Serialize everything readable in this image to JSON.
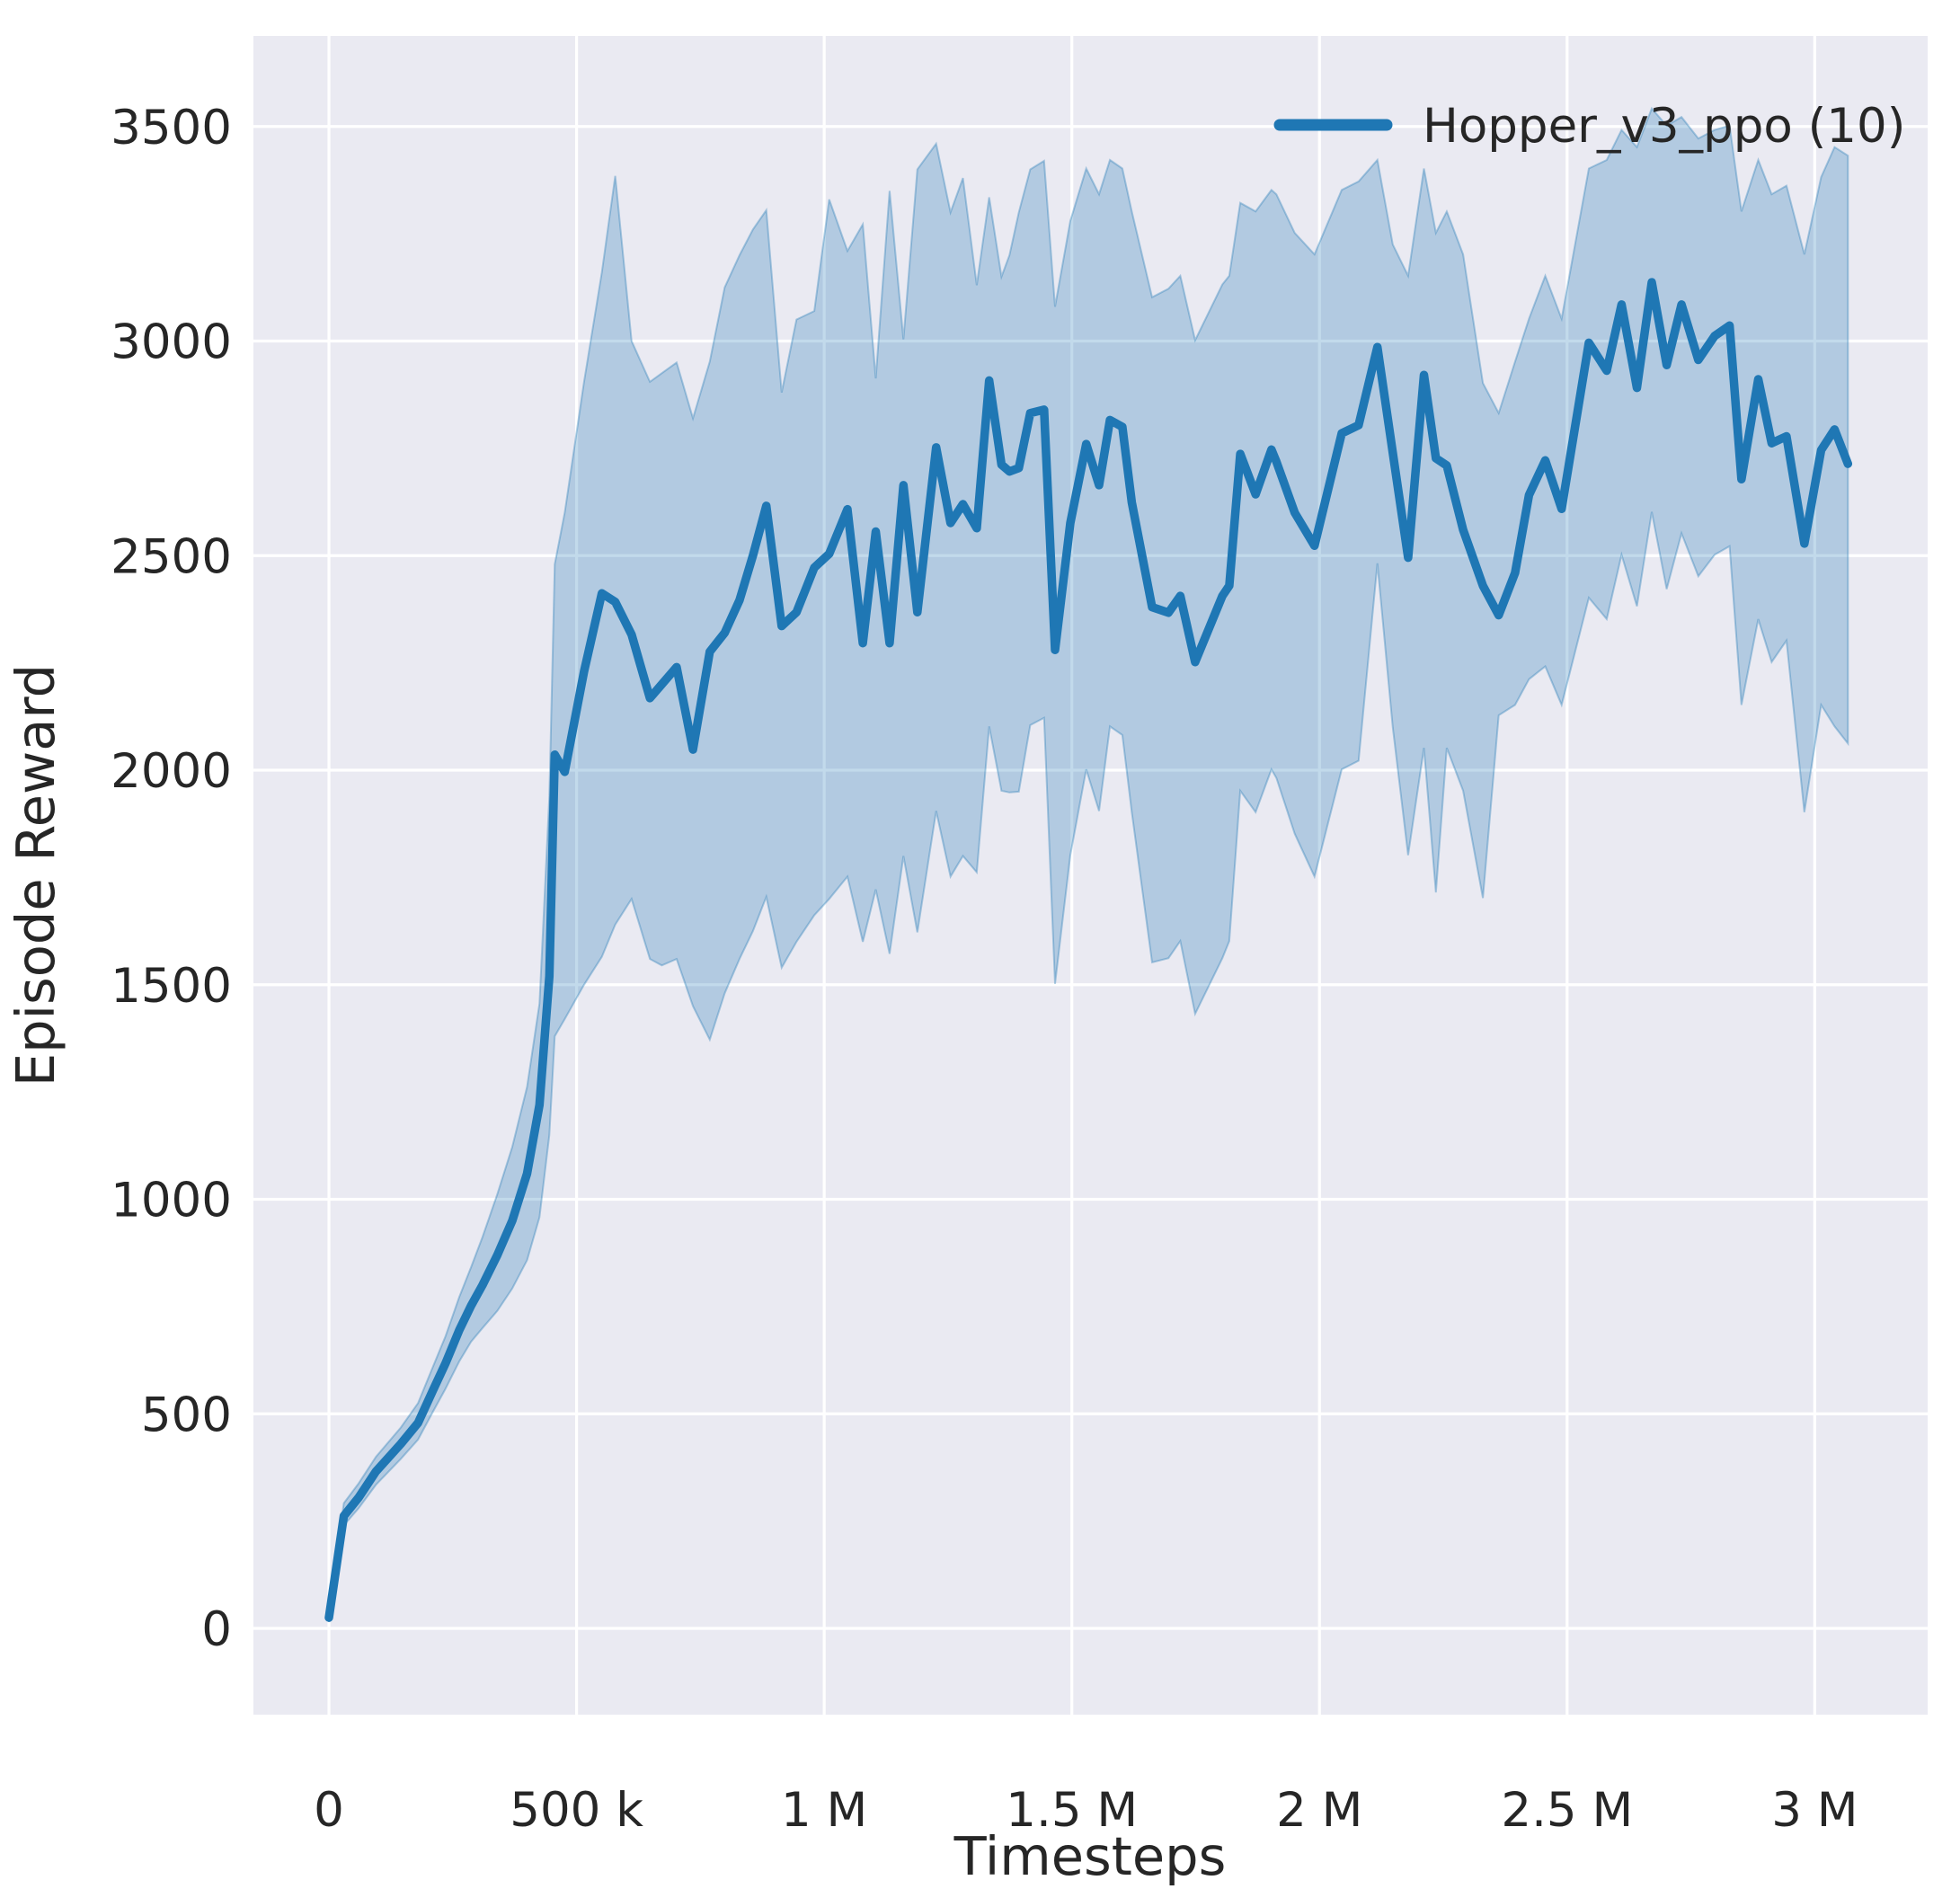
{
  "chart_data": {
    "type": "line",
    "title": "",
    "xlabel": "Timesteps",
    "ylabel": "Episode Reward",
    "legend": [
      {
        "label": "Hopper_v3_ppo (10)",
        "color": "#1f77b4"
      }
    ],
    "legend_position": "upper right",
    "grid": true,
    "colors": {
      "line": "#1f77b4",
      "band_fill": "rgba(31,119,180,0.27)",
      "band_edge": "rgba(31,119,180,0.35)",
      "plot_background": "#eaeaf2",
      "gridline": "#ffffff",
      "text": "#262626"
    },
    "axes": {
      "xlim": [
        -152500,
        3228000
      ],
      "ylim": [
        -201,
        3711
      ],
      "xticks": {
        "values": [
          0,
          500000,
          1000000,
          1500000,
          2000000,
          2500000,
          3000000
        ],
        "labels": [
          "0",
          "500 k",
          "1 M",
          "1.5 M",
          "2 M",
          "2.5 M",
          "3 M"
        ]
      },
      "yticks": {
        "values": [
          0,
          500,
          1000,
          1500,
          2000,
          2500,
          3000,
          3500
        ],
        "labels": [
          "0",
          "500",
          "1000",
          "1500",
          "2000",
          "2500",
          "3000",
          "3500"
        ]
      }
    },
    "series": [
      {
        "name": "Hopper_v3_ppo (10)",
        "x": [
          0,
          30000,
          60000,
          95000,
          145000,
          180000,
          210000,
          235000,
          263000,
          287000,
          310000,
          340000,
          370000,
          400000,
          425000,
          445000,
          456000,
          476000,
          515000,
          551000,
          578000,
          611000,
          648000,
          672000,
          702000,
          735000,
          769000,
          799000,
          829000,
          856000,
          883000,
          914000,
          944000,
          980000,
          1010000,
          1047000,
          1078000,
          1104000,
          1132000,
          1160000,
          1188000,
          1226000,
          1255000,
          1280000,
          1308000,
          1333000,
          1358000,
          1374000,
          1393000,
          1416000,
          1444000,
          1466000,
          1497000,
          1529000,
          1555000,
          1577000,
          1602000,
          1621000,
          1662000,
          1695000,
          1719000,
          1749000,
          1804000,
          1818000,
          1840000,
          1871000,
          1903000,
          1913000,
          1950000,
          1990000,
          2045000,
          2079000,
          2117000,
          2148000,
          2179000,
          2211000,
          2235000,
          2257000,
          2290000,
          2330000,
          2362000,
          2395000,
          2423000,
          2456000,
          2489000,
          2544000,
          2580000,
          2610000,
          2641000,
          2671000,
          2701000,
          2731000,
          2765000,
          2798000,
          2828000,
          2852000,
          2886000,
          2913000,
          2943000,
          2979000,
          3013000,
          3040000,
          3067000
        ],
        "mean": [
          25,
          262,
          305,
          366,
          430,
          479,
          555,
          617,
          695,
          752,
          800,
          870,
          950,
          1060,
          1220,
          1520,
          2036,
          1996,
          2230,
          2412,
          2392,
          2316,
          2168,
          2200,
          2240,
          2048,
          2276,
          2320,
          2396,
          2500,
          2616,
          2336,
          2368,
          2472,
          2504,
          2608,
          2296,
          2556,
          2296,
          2664,
          2368,
          2752,
          2576,
          2620,
          2564,
          2908,
          2712,
          2696,
          2704,
          2832,
          2840,
          2280,
          2576,
          2760,
          2664,
          2816,
          2800,
          2624,
          2380,
          2367,
          2406,
          2252,
          2406,
          2430,
          2737,
          2643,
          2747,
          2719,
          2600,
          2523,
          2785,
          2804,
          2986,
          2740,
          2495,
          2921,
          2727,
          2710,
          2560,
          2430,
          2361,
          2460,
          2641,
          2722,
          2609,
          2996,
          2931,
          3085,
          2891,
          3137,
          2944,
          3085,
          2956,
          3012,
          3036,
          2678,
          2911,
          2762,
          2778,
          2528,
          2746,
          2794,
          2714
        ],
        "lower": [
          15,
          240,
          280,
          335,
          395,
          440,
          505,
          558,
          622,
          668,
          700,
          740,
          792,
          858,
          958,
          1150,
          1380,
          1420,
          1500,
          1565,
          1640,
          1700,
          1560,
          1545,
          1560,
          1450,
          1372,
          1480,
          1560,
          1625,
          1705,
          1540,
          1600,
          1662,
          1700,
          1752,
          1600,
          1722,
          1572,
          1800,
          1622,
          1905,
          1752,
          1800,
          1762,
          2102,
          1952,
          1948,
          1950,
          2105,
          2122,
          1502,
          1802,
          2002,
          1905,
          2102,
          2082,
          1902,
          1552,
          1562,
          1602,
          1432,
          1562,
          1602,
          1952,
          1902,
          2002,
          1982,
          1852,
          1752,
          2002,
          2022,
          2482,
          2100,
          1802,
          2052,
          1715,
          2052,
          1952,
          1702,
          2128,
          2152,
          2212,
          2242,
          2152,
          2402,
          2352,
          2502,
          2382,
          2602,
          2422,
          2552,
          2452,
          2502,
          2522,
          2152,
          2352,
          2252,
          2302,
          1902,
          2152,
          2102,
          2062
        ],
        "upper": [
          40,
          292,
          338,
          400,
          468,
          525,
          610,
          680,
          772,
          842,
          912,
          1012,
          1122,
          1262,
          1456,
          1940,
          2480,
          2600,
          2905,
          3160,
          3385,
          3000,
          2905,
          2925,
          2950,
          2820,
          2952,
          3125,
          3200,
          3260,
          3305,
          2880,
          3050,
          3070,
          3330,
          3210,
          3272,
          2913,
          3350,
          3004,
          3400,
          3460,
          3300,
          3380,
          3130,
          3335,
          3150,
          3200,
          3300,
          3400,
          3420,
          3080,
          3280,
          3402,
          3342,
          3422,
          3402,
          3302,
          3102,
          3122,
          3152,
          3002,
          3132,
          3152,
          3322,
          3302,
          3352,
          3342,
          3252,
          3202,
          3352,
          3372,
          3422,
          3225,
          3152,
          3402,
          3252,
          3302,
          3202,
          2902,
          2832,
          2952,
          3052,
          3152,
          3052,
          3402,
          3422,
          3492,
          3452,
          3542,
          3502,
          3522,
          3472,
          3492,
          3502,
          3302,
          3422,
          3342,
          3362,
          3202,
          3382,
          3452,
          3432
        ]
      }
    ]
  }
}
